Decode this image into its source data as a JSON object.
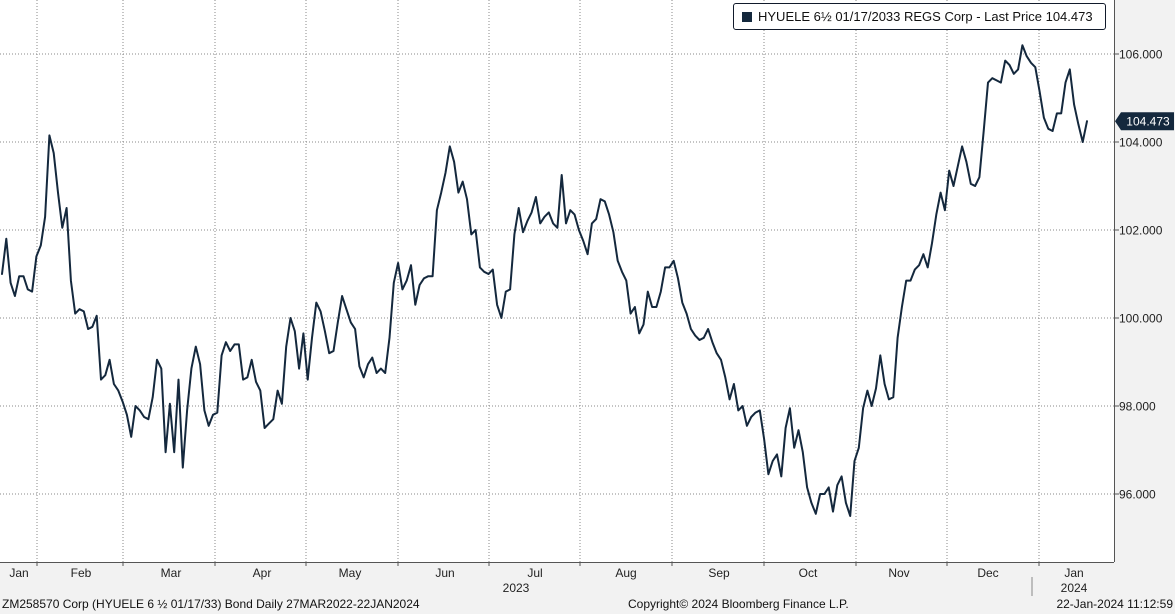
{
  "legend": {
    "label": "HYUELE 6½ 01/17/2033 REGS Corp - Last Price 104.473",
    "color": "#14283d"
  },
  "footer": {
    "left": "ZM258570 Corp (HYUELE 6 ½ 01/17/33) Bond  Daily 27MAR2022-22JAN2024",
    "center": "Copyright© 2024 Bloomberg Finance L.P.",
    "right": "22-Jan-2024 11:12:59"
  },
  "chart_data": {
    "type": "line",
    "title": "",
    "xlabel": "",
    "ylabel": "",
    "ylim": [
      94.5,
      107.2
    ],
    "y_ticks": [
      "96.000",
      "98.000",
      "100.000",
      "102.000",
      "104.000",
      "106.000"
    ],
    "x_ticks": [
      "Jan",
      "Feb",
      "Mar",
      "Apr",
      "May",
      "Jun",
      "Jul",
      "Aug",
      "Sep",
      "Oct",
      "Nov",
      "Dec",
      "Jan"
    ],
    "x_year_labels": [
      "2023",
      "2024"
    ],
    "grid": true,
    "last_price_label": "104.473",
    "last_price": 104.473,
    "series": [
      {
        "name": "HYUELE 6½ 01/17/2033 REGS Corp - Last Price",
        "color": "#14283d",
        "values": [
          101.0,
          101.8,
          100.8,
          100.5,
          100.95,
          100.95,
          100.65,
          100.6,
          101.4,
          101.65,
          102.3,
          104.15,
          103.75,
          102.85,
          102.05,
          102.5,
          100.85,
          100.1,
          100.2,
          100.15,
          99.75,
          99.8,
          100.05,
          98.6,
          98.7,
          99.05,
          98.5,
          98.35,
          98.1,
          97.8,
          97.3,
          98.0,
          97.9,
          97.75,
          97.7,
          98.2,
          99.05,
          98.85,
          96.95,
          98.05,
          96.95,
          98.6,
          96.6,
          97.9,
          98.85,
          99.35,
          98.95,
          97.9,
          97.55,
          97.8,
          97.85,
          99.15,
          99.45,
          99.25,
          99.4,
          99.4,
          98.6,
          98.65,
          99.05,
          98.55,
          98.35,
          97.5,
          97.6,
          97.7,
          98.35,
          98.05,
          99.35,
          100.0,
          99.7,
          98.85,
          99.65,
          98.6,
          99.55,
          100.35,
          100.15,
          99.7,
          99.2,
          99.25,
          99.9,
          100.5,
          100.2,
          99.9,
          99.75,
          98.9,
          98.65,
          98.95,
          99.1,
          98.75,
          98.85,
          98.75,
          99.55,
          100.8,
          101.25,
          100.65,
          100.85,
          101.2,
          100.3,
          100.75,
          100.9,
          100.95,
          100.95,
          102.45,
          102.85,
          103.3,
          103.9,
          103.55,
          102.85,
          103.1,
          102.7,
          101.9,
          102.0,
          101.15,
          101.05,
          101.0,
          101.1,
          100.3,
          100.0,
          100.6,
          100.65,
          101.9,
          102.5,
          101.95,
          102.2,
          102.4,
          102.75,
          102.15,
          102.3,
          102.4,
          102.15,
          102.05,
          103.25,
          102.15,
          102.45,
          102.35,
          102.0,
          101.75,
          101.45,
          102.15,
          102.25,
          102.7,
          102.65,
          102.35,
          101.95,
          101.3,
          101.05,
          100.85,
          100.1,
          100.25,
          99.65,
          99.85,
          100.6,
          100.25,
          100.25,
          100.6,
          101.15,
          101.15,
          101.3,
          100.9,
          100.35,
          100.1,
          99.75,
          99.6,
          99.5,
          99.55,
          99.75,
          99.45,
          99.2,
          99.05,
          98.65,
          98.15,
          98.5,
          97.9,
          98.0,
          97.55,
          97.75,
          97.85,
          97.9,
          97.25,
          96.45,
          96.75,
          96.9,
          96.4,
          97.5,
          97.95,
          97.05,
          97.45,
          96.95,
          96.15,
          95.8,
          95.55,
          96.0,
          96.0,
          96.15,
          95.6,
          96.2,
          96.4,
          95.8,
          95.5,
          96.75,
          97.05,
          97.95,
          98.35,
          98.0,
          98.4,
          99.15,
          98.5,
          98.15,
          98.2,
          99.55,
          100.25,
          100.85,
          100.85,
          101.1,
          101.2,
          101.45,
          101.15,
          101.7,
          102.35,
          102.85,
          102.45,
          103.35,
          103.0,
          103.45,
          103.9,
          103.55,
          103.05,
          103.0,
          103.2,
          104.25,
          105.35,
          105.45,
          105.4,
          105.35,
          105.85,
          105.75,
          105.55,
          105.65,
          106.2,
          105.95,
          105.8,
          105.7,
          105.15,
          104.55,
          104.3,
          104.25,
          104.65,
          104.65,
          105.35,
          105.65,
          104.85,
          104.4,
          104.0,
          104.473
        ]
      }
    ]
  }
}
